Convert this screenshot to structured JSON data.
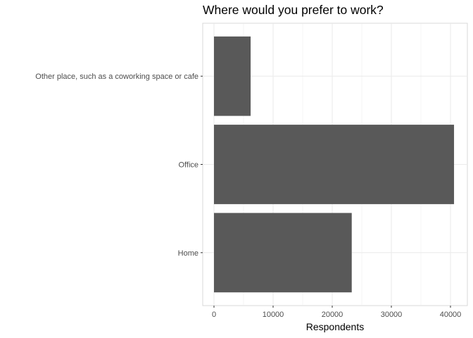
{
  "chart_data": {
    "type": "bar",
    "orientation": "horizontal",
    "title": "Where would you prefer to work?",
    "xlabel": "Respondents",
    "ylabel": "",
    "categories": [
      "Home",
      "Office",
      "Other place, such as a coworking space or cafe"
    ],
    "values": [
      23300,
      40600,
      6200
    ],
    "xlim": [
      0,
      42000
    ],
    "x_ticks": [
      0,
      10000,
      20000,
      30000,
      40000
    ],
    "x_tick_labels": [
      "0",
      "10000",
      "20000",
      "30000",
      "40000"
    ],
    "grid": true,
    "legend": "none",
    "bar_color": "#595959",
    "grid_color": "#ebebeb",
    "panel_border_color": "#d9d9d9"
  }
}
